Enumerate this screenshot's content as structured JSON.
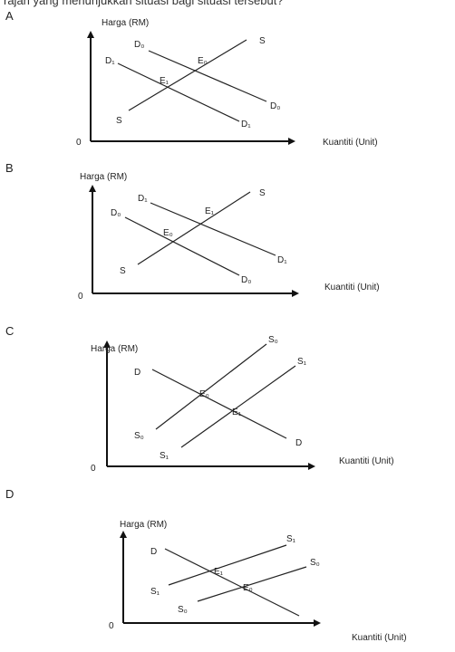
{
  "question_stem_fragment": "rajah yang menunjukkan situasi bagi situasi tersebut?",
  "options": [
    {
      "letter": "A",
      "y_axis_label": "Harga (RM)",
      "x_axis_label": "Kuantiti (Unit)",
      "origin_label": "0",
      "curves": [
        {
          "id": "supply",
          "start_label": "S",
          "end_label": "S"
        },
        {
          "id": "demand-original",
          "start_label": "D₁",
          "end_label": "D₁"
        },
        {
          "id": "demand-shifted",
          "start_label": "D₀",
          "end_label": "D₀"
        }
      ],
      "points": [
        "E₁",
        "E₀"
      ]
    },
    {
      "letter": "B",
      "y_axis_label": "Harga (RM)",
      "x_axis_label": "Kuantiti (Unit)",
      "origin_label": "0",
      "curves": [
        {
          "id": "supply",
          "start_label": "S",
          "end_label": "S"
        },
        {
          "id": "demand-upper",
          "start_label": "D₁",
          "end_label": "D₁"
        },
        {
          "id": "demand-lower",
          "start_label": "D₀",
          "end_label": "D₀"
        }
      ],
      "points": [
        "E₁",
        "E₀"
      ]
    },
    {
      "letter": "C",
      "y_axis_label": "Harga (RM)",
      "x_axis_label": "Kuantiti (Unit)",
      "origin_label": "0",
      "curves": [
        {
          "id": "demand",
          "start_label": "D",
          "end_label": "D"
        },
        {
          "id": "supply-original",
          "start_label": "S₀",
          "end_label": "S₀"
        },
        {
          "id": "supply-shifted",
          "start_label": "S₁",
          "end_label": "S₁"
        }
      ],
      "points": [
        "E₀",
        "E₁"
      ]
    },
    {
      "letter": "D",
      "y_axis_label": "Harga (RM)",
      "x_axis_label": "Kuantiti (Unit)",
      "origin_label": "0",
      "curves": [
        {
          "id": "demand",
          "start_label": "D",
          "end_label": null
        },
        {
          "id": "supply-left",
          "start_label": "S₁",
          "end_label": "S₁"
        },
        {
          "id": "supply-right",
          "start_label": "S₀",
          "end_label": "S₀"
        }
      ],
      "points": [
        "E₁",
        "E₀"
      ]
    }
  ]
}
